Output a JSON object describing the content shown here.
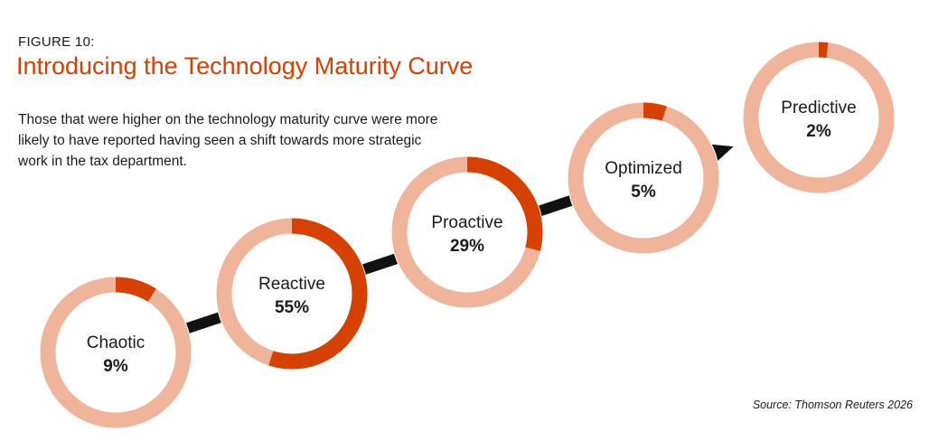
{
  "figure_label": "FIGURE 10:",
  "title": "Introducing the Technology Maturity Curve",
  "subtitle": "Those that were higher on the technology maturity curve were more likely to have reported having seen a shift towards more strategic work in the tax department.",
  "source": "Source: Thomson Reuters 2026",
  "colors": {
    "accent": "#d64000",
    "ring_background": "#f0b49b",
    "arrow": "#111111"
  },
  "chart_data": {
    "type": "pie",
    "title": "Introducing the Technology Maturity Curve",
    "categories": [
      "Chaotic",
      "Reactive",
      "Proactive",
      "Optimized",
      "Predictive"
    ],
    "values": [
      9,
      55,
      29,
      5,
      2
    ],
    "value_labels": [
      "9%",
      "55%",
      "29%",
      "5%",
      "2%"
    ],
    "unit": "%",
    "xlabel": "",
    "ylabel": ""
  }
}
